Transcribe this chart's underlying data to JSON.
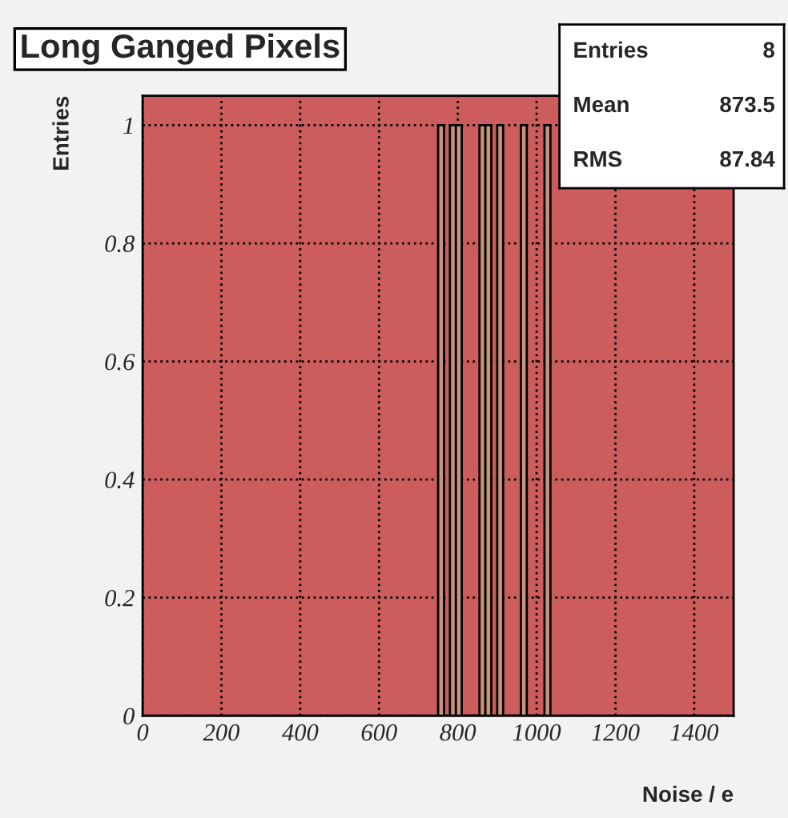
{
  "chart_data": {
    "type": "histogram",
    "title": "Long Ganged Pixels",
    "xlabel": "Noise / e",
    "ylabel": "Entries",
    "bins": [
      750,
      765,
      780,
      795,
      810,
      825,
      840,
      855,
      870,
      885,
      900,
      915,
      930,
      945,
      960,
      975,
      990,
      1005,
      1020,
      1035
    ],
    "values": [
      1,
      0,
      1,
      1,
      0,
      0,
      0,
      1,
      1,
      0,
      1,
      0,
      0,
      0,
      1,
      0,
      0,
      0,
      1
    ],
    "color": "#c8957a",
    "xlim": [
      0,
      1500
    ],
    "xticks": [
      0,
      200,
      400,
      600,
      800,
      1000,
      1200,
      1400
    ],
    "ylim": [
      0,
      1.05
    ],
    "yticks": [
      0,
      0.2,
      0.4,
      0.6,
      0.8,
      1
    ],
    "grid": true,
    "annotations": [
      "Entries",
      "8",
      "Mean",
      "873.5",
      "RMS",
      "87.84"
    ]
  }
}
